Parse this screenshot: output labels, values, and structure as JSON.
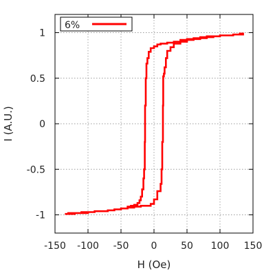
{
  "chart_data": {
    "type": "line",
    "title": "",
    "xlabel": "H (Oe)",
    "ylabel": "I (A.U.)",
    "xlim": [
      -150,
      150
    ],
    "ylim": [
      -1.2,
      1.2
    ],
    "xticks": [
      -150,
      -100,
      -50,
      0,
      50,
      100,
      150
    ],
    "yticks": [
      -1,
      -0.5,
      0,
      0.5,
      1
    ],
    "xtick_labels": [
      "-150",
      "-100",
      "-50",
      "0",
      "50",
      "100",
      "150"
    ],
    "ytick_labels": [
      "-1",
      "-0.5",
      "0",
      "0.5",
      "1"
    ],
    "grid": true,
    "legend_position": "top-left",
    "series": [
      {
        "name": "6%",
        "color": "#ff0000",
        "x": [
          -135,
          -130,
          -120,
          -110,
          -100,
          -90,
          -80,
          -70,
          -60,
          -50,
          -40,
          -35,
          -30,
          -25,
          -22,
          -20,
          -18,
          -16,
          -15,
          -14,
          -13.5,
          -12.5,
          -11.5,
          -10,
          -8,
          -5,
          0,
          5,
          10,
          20,
          30,
          40,
          50,
          60,
          70,
          80,
          90,
          100,
          110,
          120,
          125,
          130,
          135,
          134,
          130,
          120,
          110,
          100,
          90,
          80,
          70,
          60,
          50,
          40,
          30,
          25,
          20,
          18,
          16,
          15,
          14,
          13.5,
          12.5,
          11.5,
          10,
          5,
          0,
          -5,
          -10,
          -20,
          -30,
          -40,
          -50,
          -60,
          -70,
          -80,
          -90,
          -100,
          -110,
          -120,
          -130,
          -135
        ],
        "y": [
          -0.99,
          -0.99,
          -0.98,
          -0.98,
          -0.97,
          -0.96,
          -0.96,
          -0.95,
          -0.94,
          -0.93,
          -0.91,
          -0.9,
          -0.89,
          -0.87,
          -0.84,
          -0.8,
          -0.72,
          -0.6,
          -0.5,
          -0.2,
          0.2,
          0.5,
          0.66,
          0.72,
          0.79,
          0.83,
          0.85,
          0.87,
          0.88,
          0.89,
          0.9,
          0.92,
          0.93,
          0.94,
          0.95,
          0.96,
          0.96,
          0.97,
          0.97,
          0.98,
          0.98,
          0.99,
          0.98,
          0.98,
          0.98,
          0.97,
          0.97,
          0.96,
          0.95,
          0.94,
          0.93,
          0.92,
          0.9,
          0.88,
          0.84,
          0.8,
          0.72,
          0.62,
          0.55,
          0.52,
          0.2,
          -0.2,
          -0.5,
          -0.66,
          -0.74,
          -0.83,
          -0.88,
          -0.9,
          -0.9,
          -0.91,
          -0.92,
          -0.93,
          -0.94,
          -0.95,
          -0.96,
          -0.96,
          -0.97,
          -0.97,
          -0.98,
          -0.98,
          -0.99,
          -0.99
        ]
      }
    ]
  }
}
